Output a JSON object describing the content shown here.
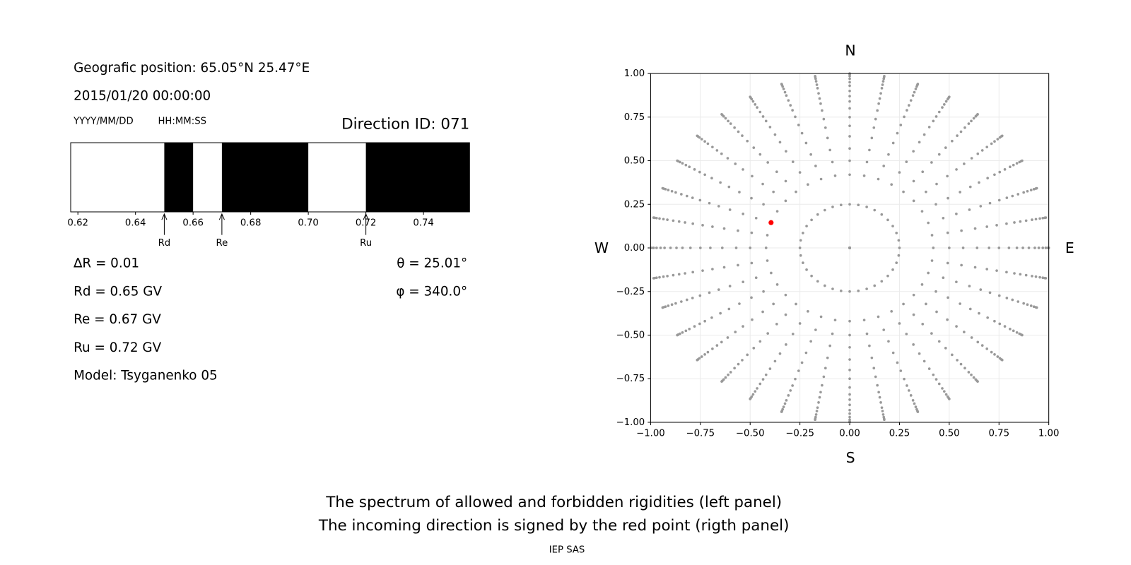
{
  "info": {
    "position": "Geografic position: 65.05°N 25.47°E",
    "datetime": "2015/01/20 00:00:00",
    "date_format": "YYYY/MM/DD",
    "time_format": "HH:MM:SS",
    "direction": "Direction ID: 071",
    "delta_r": "∆R = 0.01",
    "rd": "Rd = 0.65 GV",
    "re": "Re = 0.67 GV",
    "ru": "Ru = 0.72 GV",
    "model": "Model: Tsyganenko 05",
    "theta": "θ = 25.01°",
    "phi": "φ = 340.0°"
  },
  "chart_data": [
    {
      "type": "spectrum",
      "xlim": [
        0.6175,
        0.756
      ],
      "xticks": [
        0.62,
        0.64,
        0.66,
        0.68,
        {
          "value": 0.7,
          "label": "0.70"
        },
        0.72,
        0.74
      ],
      "forbidden": [
        [
          0.65,
          0.66
        ],
        [
          0.67,
          0.7
        ],
        [
          0.72,
          0.756
        ]
      ],
      "color": "#000000",
      "markers": [
        {
          "label": "Rd",
          "value": 0.65
        },
        {
          "label": "Re",
          "value": 0.67
        },
        {
          "label": "Ru",
          "value": 0.72
        }
      ]
    },
    {
      "type": "scatter",
      "xlim": [
        -1,
        1
      ],
      "ylim": [
        -1,
        1
      ],
      "xticks": [
        {
          "value": -1,
          "label": "−1.00"
        },
        {
          "value": -0.75,
          "label": "−0.75"
        },
        {
          "value": -0.5,
          "label": "−0.50"
        },
        {
          "value": -0.25,
          "label": "−0.25"
        },
        {
          "value": 0,
          "label": "0.00"
        },
        {
          "value": 0.25,
          "label": "0.25"
        },
        {
          "value": 0.5,
          "label": "0.50"
        },
        {
          "value": 0.75,
          "label": "0.75"
        },
        {
          "value": 1,
          "label": "1.00"
        }
      ],
      "yticks": [
        {
          "value": -1,
          "label": "−1.00"
        },
        {
          "value": -0.75,
          "label": "−0.75"
        },
        {
          "value": -0.5,
          "label": "−0.50"
        },
        {
          "value": -0.25,
          "label": "−0.25"
        },
        {
          "value": 0,
          "label": "0.00"
        },
        {
          "value": 0.25,
          "label": "0.25"
        },
        {
          "value": 0.5,
          "label": "0.50"
        },
        {
          "value": 0.75,
          "label": "0.75"
        },
        {
          "value": 1,
          "label": "1.00"
        }
      ],
      "grid": true,
      "directions": {
        "north": "N",
        "south": "S",
        "west": "W",
        "east": "E"
      },
      "grid_points": {
        "color": "#999999",
        "azimuths": [
          0,
          10,
          20,
          30,
          40,
          50,
          60,
          70,
          80,
          90,
          100,
          110,
          120,
          130,
          140,
          150,
          160,
          170,
          180,
          190,
          200,
          210,
          220,
          230,
          240,
          250,
          260,
          270,
          280,
          290,
          300,
          310,
          320,
          330,
          340,
          350
        ],
        "radii": [
          0,
          0.25,
          0.42,
          0.5,
          0.57,
          0.64,
          0.7,
          0.75,
          0.8,
          0.84,
          0.87,
          0.9,
          0.93,
          0.95,
          0.97,
          0.985,
          0.995,
          1
        ]
      },
      "series": [
        {
          "color": "#ff0000",
          "x": [
            -0.395
          ],
          "y": [
            0.145
          ]
        }
      ]
    }
  ],
  "footer": {
    "line1": "The spectrum of allowed and forbidden rigidities (left panel)",
    "line2": "The incoming direction is signed by the red point (rigth panel)",
    "credit": "IEP SAS"
  }
}
